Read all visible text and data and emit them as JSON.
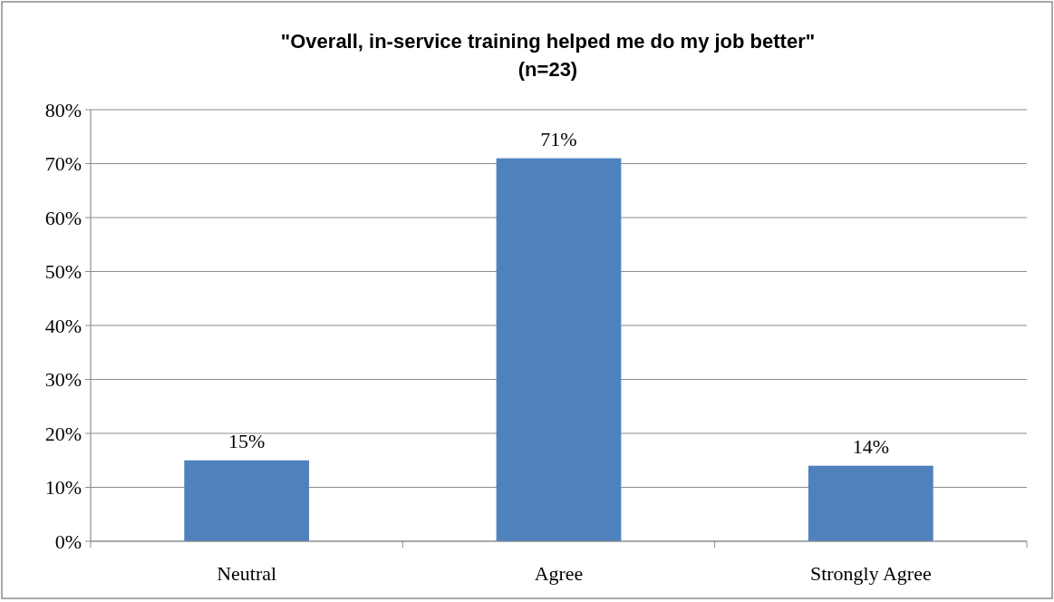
{
  "chart_data": {
    "type": "bar",
    "title": "\"Overall, in-service training helped me do my job better\"",
    "subtitle": "(n=23)",
    "categories": [
      "Neutral",
      "Agree",
      "Strongly Agree"
    ],
    "values": [
      15,
      71,
      14
    ],
    "color": "#4f81bd",
    "value_labels": [
      "15%",
      "71%",
      "14%"
    ],
    "ylim": [
      0,
      80
    ],
    "yticks": [
      {
        "value": 0,
        "label": "0%"
      },
      {
        "value": 10,
        "label": "10%"
      },
      {
        "value": 20,
        "label": "20%"
      },
      {
        "value": 30,
        "label": "30%"
      },
      {
        "value": 40,
        "label": "40%"
      },
      {
        "value": 50,
        "label": "50%"
      },
      {
        "value": 60,
        "label": "60%"
      },
      {
        "value": 70,
        "label": "70%"
      },
      {
        "value": 80,
        "label": "80%"
      }
    ],
    "grid": "y"
  }
}
